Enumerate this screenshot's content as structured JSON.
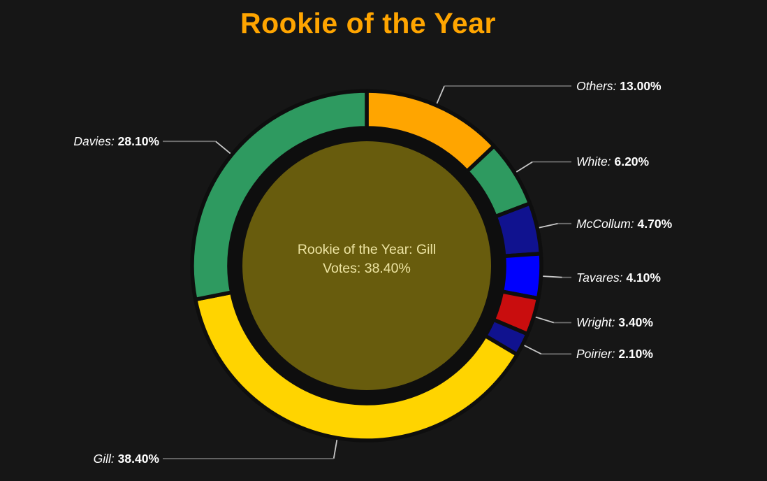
{
  "page": {
    "background": "#161616"
  },
  "title": {
    "text": "Rookie of the Year",
    "color": "#FFA500"
  },
  "chart_data": {
    "type": "pie",
    "subtype": "donut",
    "title": "Rookie of the Year",
    "start_angle_deg": 0,
    "direction": "clockwise",
    "legend_position": "none",
    "center_label": {
      "line1": "Rookie of the Year: Gill",
      "line2": "Votes: 38.40%",
      "color": "#EDE4A2",
      "disc_color": "#685C0D"
    },
    "colors": {
      "segment_gap": "#0E0E0E",
      "leader_inner": "#C8C8C8",
      "leader_outer": "#6E6E6E",
      "label_text": "#FFFFFF"
    },
    "segments": [
      {
        "name": "Others",
        "value": 13.0,
        "display": "13.00%",
        "color": "#FFA500"
      },
      {
        "name": "White",
        "value": 6.2,
        "display": "6.20%",
        "color": "#2E9A60"
      },
      {
        "name": "McCollum",
        "value": 4.7,
        "display": "4.70%",
        "color": "#10128F"
      },
      {
        "name": "Tavares",
        "value": 4.1,
        "display": "4.10%",
        "color": "#0000FE"
      },
      {
        "name": "Wright",
        "value": 3.4,
        "display": "3.40%",
        "color": "#C90D0E"
      },
      {
        "name": "Poirier",
        "value": 2.1,
        "display": "2.10%",
        "color": "#10128F"
      },
      {
        "name": "Gill",
        "value": 38.4,
        "display": "38.40%",
        "color": "#FFD400"
      },
      {
        "name": "Davies",
        "value": 28.1,
        "display": "28.10%",
        "color": "#2E9A60"
      }
    ]
  }
}
